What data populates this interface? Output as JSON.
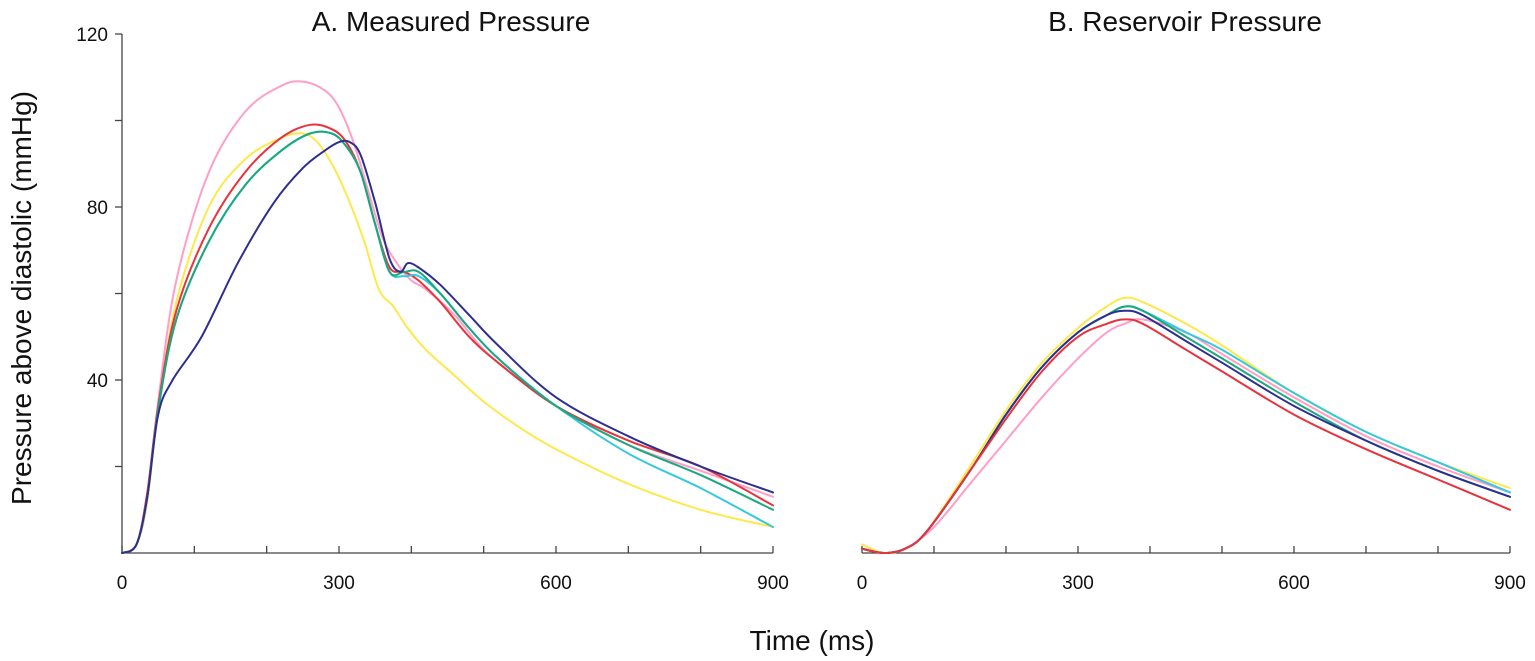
{
  "figure": {
    "xlabel": "Time (ms)",
    "ylabel": "Pressure above diastolic (mmHg)"
  },
  "chart_data": [
    {
      "type": "line",
      "title": "A. Measured Pressure",
      "xlabel": "Time (ms)",
      "ylabel": "Pressure above diastolic (mmHg)",
      "xlim": [
        0,
        900
      ],
      "ylim": [
        0,
        120
      ],
      "x_ticks": [
        0,
        300,
        600,
        900
      ],
      "x_minor_step": 100,
      "y_ticks": [
        40,
        80,
        120
      ],
      "y_minor_step": 20,
      "grid": false,
      "legend": "none",
      "series": [
        {
          "color": "#ff9ec7",
          "points": [
            [
              0,
              0
            ],
            [
              20,
              2
            ],
            [
              35,
              12
            ],
            [
              50,
              35
            ],
            [
              75,
              63
            ],
            [
              120,
              88
            ],
            [
              170,
              102
            ],
            [
              220,
              108
            ],
            [
              250,
              109
            ],
            [
              280,
              107
            ],
            [
              300,
              103
            ],
            [
              320,
              95
            ],
            [
              340,
              84
            ],
            [
              360,
              73
            ],
            [
              380,
              67
            ],
            [
              400,
              63
            ],
            [
              420,
              61
            ],
            [
              460,
              55
            ],
            [
              500,
              47
            ],
            [
              550,
              40
            ],
            [
              600,
              34
            ],
            [
              700,
              25
            ],
            [
              800,
              19
            ],
            [
              900,
              13
            ]
          ]
        },
        {
          "color": "#ffe84a",
          "points": [
            [
              0,
              0
            ],
            [
              20,
              2
            ],
            [
              35,
              12
            ],
            [
              50,
              33
            ],
            [
              75,
              58
            ],
            [
              120,
              80
            ],
            [
              170,
              91
            ],
            [
              220,
              96
            ],
            [
              250,
              97
            ],
            [
              270,
              95
            ],
            [
              290,
              90
            ],
            [
              310,
              83
            ],
            [
              335,
              72
            ],
            [
              355,
              61
            ],
            [
              375,
              57
            ],
            [
              395,
              52
            ],
            [
              420,
              47
            ],
            [
              460,
              41
            ],
            [
              500,
              35
            ],
            [
              550,
              29
            ],
            [
              600,
              24
            ],
            [
              700,
              16
            ],
            [
              800,
              10
            ],
            [
              900,
              6
            ]
          ]
        },
        {
          "color": "#e8323c",
          "points": [
            [
              0,
              0
            ],
            [
              20,
              2
            ],
            [
              35,
              14
            ],
            [
              50,
              34
            ],
            [
              75,
              56
            ],
            [
              120,
              75
            ],
            [
              170,
              88
            ],
            [
              220,
              96
            ],
            [
              260,
              99
            ],
            [
              290,
              98
            ],
            [
              310,
              95
            ],
            [
              330,
              88
            ],
            [
              350,
              76
            ],
            [
              370,
              66
            ],
            [
              390,
              65
            ],
            [
              410,
              63
            ],
            [
              440,
              58
            ],
            [
              480,
              50
            ],
            [
              520,
              44
            ],
            [
              600,
              34
            ],
            [
              700,
              26
            ],
            [
              800,
              20
            ],
            [
              900,
              11
            ]
          ]
        },
        {
          "color": "#35c8e0",
          "points": [
            [
              0,
              0
            ],
            [
              20,
              2
            ],
            [
              35,
              13
            ],
            [
              50,
              33
            ],
            [
              75,
              54
            ],
            [
              120,
              72
            ],
            [
              170,
              85
            ],
            [
              220,
              93
            ],
            [
              260,
              97
            ],
            [
              290,
              97
            ],
            [
              310,
              94
            ],
            [
              330,
              88
            ],
            [
              350,
              76
            ],
            [
              370,
              65
            ],
            [
              390,
              64
            ],
            [
              410,
              64
            ],
            [
              440,
              60
            ],
            [
              480,
              52
            ],
            [
              520,
              45
            ],
            [
              600,
              34
            ],
            [
              700,
              23
            ],
            [
              800,
              15
            ],
            [
              900,
              6
            ]
          ]
        },
        {
          "color": "#1aa87e",
          "points": [
            [
              0,
              0
            ],
            [
              20,
              2
            ],
            [
              35,
              13
            ],
            [
              50,
              33
            ],
            [
              75,
              54
            ],
            [
              120,
              72
            ],
            [
              170,
              85
            ],
            [
              220,
              93
            ],
            [
              260,
              97
            ],
            [
              290,
              97
            ],
            [
              310,
              94
            ],
            [
              330,
              88
            ],
            [
              350,
              76
            ],
            [
              370,
              65
            ],
            [
              390,
              65
            ],
            [
              410,
              65
            ],
            [
              440,
              60
            ],
            [
              480,
              52
            ],
            [
              520,
              45
            ],
            [
              600,
              34
            ],
            [
              700,
              25
            ],
            [
              800,
              18
            ],
            [
              900,
              10
            ]
          ]
        },
        {
          "color": "#2c2f8e",
          "points": [
            [
              0,
              0
            ],
            [
              20,
              2
            ],
            [
              35,
              13
            ],
            [
              50,
              32
            ],
            [
              70,
              40
            ],
            [
              110,
              50
            ],
            [
              160,
              67
            ],
            [
              210,
              81
            ],
            [
              250,
              89
            ],
            [
              280,
              93
            ],
            [
              300,
              95
            ],
            [
              315,
              95
            ],
            [
              330,
              92
            ],
            [
              350,
              81
            ],
            [
              370,
              68
            ],
            [
              385,
              65
            ],
            [
              395,
              67
            ],
            [
              410,
              66
            ],
            [
              440,
              62
            ],
            [
              480,
              55
            ],
            [
              520,
              48
            ],
            [
              600,
              36
            ],
            [
              700,
              27
            ],
            [
              800,
              20
            ],
            [
              900,
              14
            ]
          ]
        }
      ]
    },
    {
      "type": "line",
      "title": "B. Reservoir Pressure",
      "xlabel": "Time (ms)",
      "xlim": [
        0,
        900
      ],
      "ylim": [
        0,
        120
      ],
      "x_ticks": [
        0,
        300,
        600,
        900
      ],
      "x_minor_step": 100,
      "grid": false,
      "legend": "none",
      "series": [
        {
          "color": "#ffe84a",
          "points": [
            [
              0,
              2
            ],
            [
              30,
              0
            ],
            [
              60,
              1
            ],
            [
              90,
              5
            ],
            [
              150,
              20
            ],
            [
              200,
              33
            ],
            [
              250,
              44
            ],
            [
              300,
              52
            ],
            [
              340,
              57
            ],
            [
              365,
              59
            ],
            [
              390,
              58
            ],
            [
              450,
              53
            ],
            [
              500,
              48
            ],
            [
              600,
              37
            ],
            [
              700,
              28
            ],
            [
              800,
              21
            ],
            [
              900,
              15
            ]
          ]
        },
        {
          "color": "#ff9ec7",
          "points": [
            [
              0,
              1
            ],
            [
              30,
              0
            ],
            [
              60,
              1
            ],
            [
              100,
              6
            ],
            [
              150,
              16
            ],
            [
              200,
              26
            ],
            [
              250,
              36
            ],
            [
              300,
              45
            ],
            [
              340,
              51
            ],
            [
              365,
              53
            ],
            [
              390,
              54
            ],
            [
              450,
              51
            ],
            [
              500,
              46
            ],
            [
              600,
              36
            ],
            [
              700,
              27
            ],
            [
              800,
              20
            ],
            [
              900,
              14
            ]
          ]
        },
        {
          "color": "#35c8e0",
          "points": [
            [
              0,
              1
            ],
            [
              30,
              0
            ],
            [
              60,
              1
            ],
            [
              90,
              5
            ],
            [
              150,
              19
            ],
            [
              200,
              32
            ],
            [
              250,
              43
            ],
            [
              300,
              51
            ],
            [
              340,
              55
            ],
            [
              365,
              57
            ],
            [
              390,
              56
            ],
            [
              450,
              51
            ],
            [
              500,
              47
            ],
            [
              600,
              37
            ],
            [
              700,
              28
            ],
            [
              800,
              21
            ],
            [
              900,
              14
            ]
          ]
        },
        {
          "color": "#1aa87e",
          "points": [
            [
              0,
              1
            ],
            [
              30,
              0
            ],
            [
              60,
              1
            ],
            [
              90,
              5
            ],
            [
              150,
              19
            ],
            [
              200,
              32
            ],
            [
              250,
              43
            ],
            [
              300,
              51
            ],
            [
              340,
              55
            ],
            [
              365,
              57
            ],
            [
              390,
              56
            ],
            [
              450,
              50
            ],
            [
              500,
              45
            ],
            [
              600,
              35
            ],
            [
              700,
              26
            ],
            [
              800,
              19
            ],
            [
              900,
              13
            ]
          ]
        },
        {
          "color": "#2c2f8e",
          "points": [
            [
              0,
              1
            ],
            [
              30,
              0
            ],
            [
              60,
              1
            ],
            [
              90,
              5
            ],
            [
              150,
              19
            ],
            [
              200,
              32
            ],
            [
              250,
              43
            ],
            [
              300,
              51
            ],
            [
              340,
              55
            ],
            [
              365,
              56
            ],
            [
              390,
              55
            ],
            [
              450,
              49
            ],
            [
              500,
              44
            ],
            [
              600,
              34
            ],
            [
              700,
              26
            ],
            [
              800,
              19
            ],
            [
              900,
              13
            ]
          ]
        },
        {
          "color": "#e8323c",
          "points": [
            [
              0,
              1
            ],
            [
              30,
              0
            ],
            [
              60,
              1
            ],
            [
              90,
              5
            ],
            [
              150,
              19
            ],
            [
              200,
              31
            ],
            [
              250,
              42
            ],
            [
              300,
              50
            ],
            [
              340,
              53
            ],
            [
              365,
              54
            ],
            [
              390,
              53
            ],
            [
              450,
              47
            ],
            [
              500,
              42
            ],
            [
              600,
              32
            ],
            [
              700,
              24
            ],
            [
              800,
              17
            ],
            [
              900,
              10
            ]
          ]
        }
      ]
    }
  ]
}
